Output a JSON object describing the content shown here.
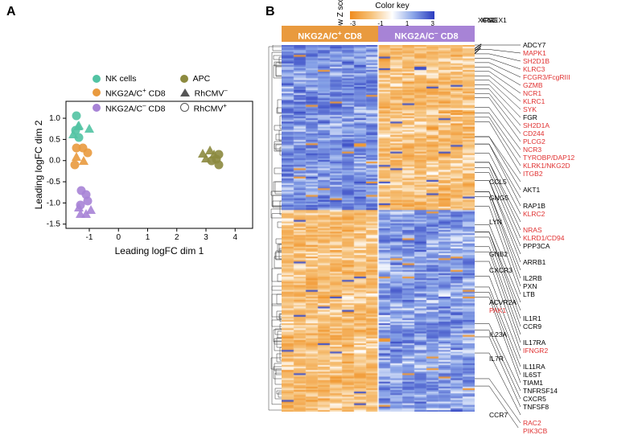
{
  "panels": {
    "A": "A",
    "B": "B"
  },
  "scatter": {
    "x_label": "Leading logFC dim 1",
    "y_label": "Leading logFC dim 2",
    "xlim": [
      -1.8,
      4.6
    ],
    "ylim": [
      -1.6,
      1.4
    ],
    "xticks": [
      -1,
      0,
      1,
      2,
      3,
      4
    ],
    "yticks": [
      -1.5,
      -1.0,
      -0.5,
      0.0,
      0.5,
      1.0
    ],
    "colors": {
      "NK": "#52c3a3",
      "NKG2AC_pos": "#e99a3e",
      "NKG2AC_neg": "#a783d6",
      "APC": "#8c8a3f"
    },
    "legend": {
      "c1": [
        {
          "label": "NK cells",
          "color": "#52c3a3"
        },
        {
          "label": "NKG2A/C⁺ CD8",
          "color": "#e99a3e"
        },
        {
          "label": "NKG2A/C⁻ CD8",
          "color": "#a783d6"
        }
      ],
      "c2": [
        {
          "label": "APC",
          "color": "#8c8a3f"
        },
        {
          "label": "RhCMV⁻",
          "shape": "triangle"
        },
        {
          "label": "RhCMV⁺",
          "shape": "circle"
        }
      ]
    },
    "points": [
      {
        "x": -1.45,
        "y": 1.05,
        "grp": "NK",
        "shape": "circle"
      },
      {
        "x": -1.4,
        "y": 0.78,
        "grp": "NK",
        "shape": "triangle"
      },
      {
        "x": -1.35,
        "y": 0.8,
        "grp": "NK",
        "shape": "triangle"
      },
      {
        "x": -1.46,
        "y": 0.72,
        "grp": "NK",
        "shape": "circle"
      },
      {
        "x": -1.55,
        "y": 0.58,
        "grp": "NK",
        "shape": "triangle"
      },
      {
        "x": -1.35,
        "y": 0.55,
        "grp": "NK",
        "shape": "circle"
      },
      {
        "x": -1.0,
        "y": 0.72,
        "grp": "NK",
        "shape": "triangle"
      },
      {
        "x": -1.05,
        "y": 0.18,
        "grp": "NKG2AC_pos",
        "shape": "circle"
      },
      {
        "x": -1.45,
        "y": 0.05,
        "grp": "NKG2AC_pos",
        "shape": "triangle"
      },
      {
        "x": -1.22,
        "y": 0.3,
        "grp": "NKG2AC_pos",
        "shape": "circle"
      },
      {
        "x": -1.45,
        "y": 0.3,
        "grp": "NKG2AC_pos",
        "shape": "circle"
      },
      {
        "x": -1.5,
        "y": -0.1,
        "grp": "NKG2AC_pos",
        "shape": "circle"
      },
      {
        "x": -1.18,
        "y": -0.05,
        "grp": "NKG2AC_pos",
        "shape": "triangle"
      },
      {
        "x": -1.28,
        "y": -0.7,
        "grp": "NKG2AC_neg",
        "shape": "circle"
      },
      {
        "x": -1.1,
        "y": -0.8,
        "grp": "NKG2AC_neg",
        "shape": "circle"
      },
      {
        "x": -1.05,
        "y": -0.95,
        "grp": "NKG2AC_neg",
        "shape": "circle"
      },
      {
        "x": -1.3,
        "y": -1.05,
        "grp": "NKG2AC_neg",
        "shape": "circle"
      },
      {
        "x": -0.95,
        "y": -1.2,
        "grp": "NKG2AC_neg",
        "shape": "triangle"
      },
      {
        "x": -1.1,
        "y": -1.3,
        "grp": "NKG2AC_neg",
        "shape": "triangle"
      },
      {
        "x": -1.3,
        "y": -1.3,
        "grp": "NKG2AC_neg",
        "shape": "triangle"
      },
      {
        "x": -1.35,
        "y": -1.15,
        "grp": "NKG2AC_neg",
        "shape": "triangle"
      },
      {
        "x": 2.9,
        "y": 0.12,
        "grp": "APC",
        "shape": "triangle"
      },
      {
        "x": 3.0,
        "y": 0.02,
        "grp": "APC",
        "shape": "triangle"
      },
      {
        "x": 3.15,
        "y": 0.2,
        "grp": "APC",
        "shape": "triangle"
      },
      {
        "x": 3.28,
        "y": 0.1,
        "grp": "APC",
        "shape": "triangle"
      },
      {
        "x": 3.2,
        "y": 0.0,
        "grp": "APC",
        "shape": "circle"
      },
      {
        "x": 3.35,
        "y": 0.04,
        "grp": "APC",
        "shape": "circle"
      },
      {
        "x": 3.45,
        "y": 0.14,
        "grp": "APC",
        "shape": "circle"
      },
      {
        "x": 3.45,
        "y": -0.1,
        "grp": "APC",
        "shape": "circle"
      }
    ]
  },
  "heatmap": {
    "headers": {
      "pos": {
        "label": "NKG2A/C⁺ CD8",
        "color": "#e99a3e"
      },
      "neg": {
        "label": "NKG2A/C⁻ CD8",
        "color": "#a783d6"
      }
    },
    "key": {
      "title": "Color key",
      "row_z": "Row Z score",
      "ticks": [
        "-3",
        "-1",
        "1",
        "3"
      ],
      "gradient": [
        "#f08c1e",
        "#f6c27a",
        "#ffffff",
        "#8aa5e8",
        "#2b3bbf"
      ]
    },
    "cols": 16,
    "rows": 220,
    "gene_top": [
      {
        "t": "XCL1",
        "c": "black"
      },
      {
        "t": "IFNG",
        "c": "black"
      },
      {
        "t": "PREX1",
        "c": "black"
      }
    ],
    "genes": [
      {
        "t": "ADCY7",
        "c": "black",
        "y": 0.0
      },
      {
        "t": "MAPK1",
        "c": "red",
        "y": 0.012
      },
      {
        "t": "SH2D1B",
        "c": "red",
        "y": 0.024
      },
      {
        "t": "KLRC3",
        "c": "red",
        "y": 0.036
      },
      {
        "t": "FCGR3/FcgRIII",
        "c": "red",
        "y": 0.048
      },
      {
        "t": "GZMB",
        "c": "red",
        "y": 0.06
      },
      {
        "t": "NCR1",
        "c": "red",
        "y": 0.072
      },
      {
        "t": "KLRC1",
        "c": "red",
        "y": 0.084
      },
      {
        "t": "SYK",
        "c": "red",
        "y": 0.096
      },
      {
        "t": "FGR",
        "c": "black",
        "y": 0.108
      },
      {
        "t": "SH2D1A",
        "c": "red",
        "y": 0.12
      },
      {
        "t": "CD244",
        "c": "red",
        "y": 0.132
      },
      {
        "t": "PLCG2",
        "c": "red",
        "y": 0.144
      },
      {
        "t": "NCR3",
        "c": "red",
        "y": 0.17
      },
      {
        "t": "TYROBP/DAP12",
        "c": "red",
        "y": 0.185
      },
      {
        "t": "KLRK1/NKG2D",
        "c": "red",
        "y": 0.197
      },
      {
        "t": "ITGB2",
        "c": "red",
        "y": 0.209
      },
      {
        "t": "CCL5",
        "c": "black",
        "y": 0.25
      },
      {
        "t": "AKT1",
        "c": "black",
        "y": 0.25
      },
      {
        "t": "GNG5",
        "c": "black",
        "y": 0.27
      },
      {
        "t": "RAP1B",
        "c": "black",
        "y": 0.27
      },
      {
        "t": "KLRC2",
        "c": "red",
        "y": 0.295
      },
      {
        "t": "LYN",
        "c": "black",
        "y": 0.32
      },
      {
        "t": "NRAS",
        "c": "red",
        "y": 0.32
      },
      {
        "t": "KLRD1/CD94",
        "c": "red",
        "y": 0.334
      },
      {
        "t": "PPP3CA",
        "c": "black",
        "y": 0.348
      },
      {
        "t": "GNB2",
        "c": "black",
        "y": 0.37
      },
      {
        "t": "ARRB1",
        "c": "black",
        "y": 0.37
      },
      {
        "t": "CXCR3",
        "c": "black",
        "y": 0.4
      },
      {
        "t": "IL2RB",
        "c": "black",
        "y": 0.4
      },
      {
        "t": "PXN",
        "c": "black",
        "y": 0.414
      },
      {
        "t": "LTB",
        "c": "black",
        "y": 0.44
      },
      {
        "t": "ACVR2A",
        "c": "black",
        "y": 0.49
      },
      {
        "t": "PAK1",
        "c": "red",
        "y": 0.51
      },
      {
        "t": "IL1R1",
        "c": "black",
        "y": 0.51
      },
      {
        "t": "CCR9",
        "c": "black",
        "y": 0.524
      },
      {
        "t": "IL23A",
        "c": "black",
        "y": 0.55
      },
      {
        "t": "IL17RA",
        "c": "black",
        "y": 0.564
      },
      {
        "t": "IFNGR2",
        "c": "red",
        "y": 0.59
      },
      {
        "t": "IL7R",
        "c": "black",
        "y": 0.63
      },
      {
        "t": "IL11RA",
        "c": "black",
        "y": 0.66
      },
      {
        "t": "IL6ST",
        "c": "black",
        "y": 0.674
      },
      {
        "t": "TIAM1",
        "c": "black",
        "y": 0.688
      },
      {
        "t": "TNFRSF14",
        "c": "black",
        "y": 0.76
      },
      {
        "t": "CXCR5",
        "c": "black",
        "y": 0.778
      },
      {
        "t": "TNFSF8",
        "c": "black",
        "y": 0.796
      },
      {
        "t": "CCR7",
        "c": "black",
        "y": 0.84
      },
      {
        "t": "RAC2",
        "c": "red",
        "y": 0.91
      },
      {
        "t": "PIK3CB",
        "c": "red",
        "y": 0.93
      }
    ]
  }
}
